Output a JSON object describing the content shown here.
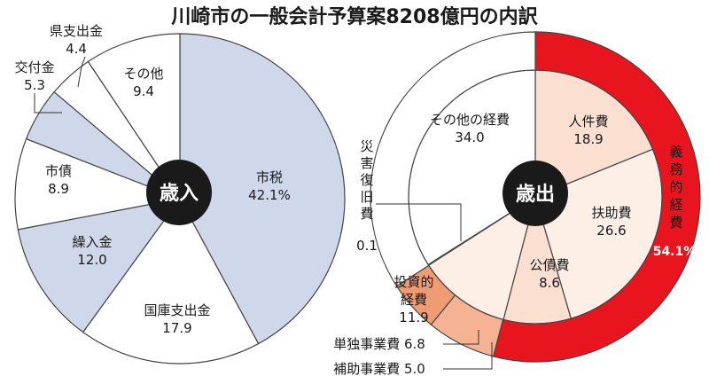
{
  "title": "川崎市の一般会計予算案8208億円の内訳",
  "chart_data": [
    {
      "type": "pie",
      "center_label": "歳入",
      "slices": [
        {
          "name": "市税",
          "value": 42.1,
          "value_label": "42.1%",
          "color": "#cfd8ea"
        },
        {
          "name": "国庫支出金",
          "value": 17.9,
          "value_label": "17.9",
          "color": "#ffffff"
        },
        {
          "name": "繰入金",
          "value": 12.0,
          "value_label": "12.0",
          "color": "#cfd8ea"
        },
        {
          "name": "市債",
          "value": 8.9,
          "value_label": "8.9",
          "color": "#ffffff"
        },
        {
          "name": "交付金",
          "value": 5.3,
          "value_label": "5.3",
          "color": "#cfd8ea"
        },
        {
          "name": "県支出金",
          "value": 4.4,
          "value_label": "4.4",
          "color": "#ffffff"
        },
        {
          "name": "その他",
          "value": 9.4,
          "value_label": "9.4",
          "color": "#ffffff"
        }
      ]
    },
    {
      "type": "pie",
      "center_label": "歳出",
      "slices": [
        {
          "name": "人件費",
          "value": 18.9,
          "value_label": "18.9",
          "color": "#fbe0d2"
        },
        {
          "name": "扶助費",
          "value": 26.6,
          "value_label": "26.6",
          "color": "#fdeee6"
        },
        {
          "name": "公債費",
          "value": 8.6,
          "value_label": "8.6",
          "color": "#fbe0d2"
        },
        {
          "name": "投資的経費",
          "value": 11.9,
          "value_label": "11.9",
          "color": "#fdeee6"
        },
        {
          "name": "災害復旧費",
          "value": 0.1,
          "value_label": "0.1",
          "color": "#fbe0d2"
        },
        {
          "name": "その他の経費",
          "value": 34.0,
          "value_label": "34.0",
          "color": "#ffffff"
        }
      ],
      "outer_ring": [
        {
          "name": "義務的経費",
          "value": 54.1,
          "value_label": "54.1%",
          "color": "#e8141e"
        },
        {
          "name": "単独事業費",
          "value": 6.8,
          "value_label": "6.8",
          "color": "#f5b393"
        },
        {
          "name": "補助事業費",
          "value": 5.0,
          "value_label": "5.0",
          "color": "#ef9c74"
        }
      ]
    }
  ]
}
